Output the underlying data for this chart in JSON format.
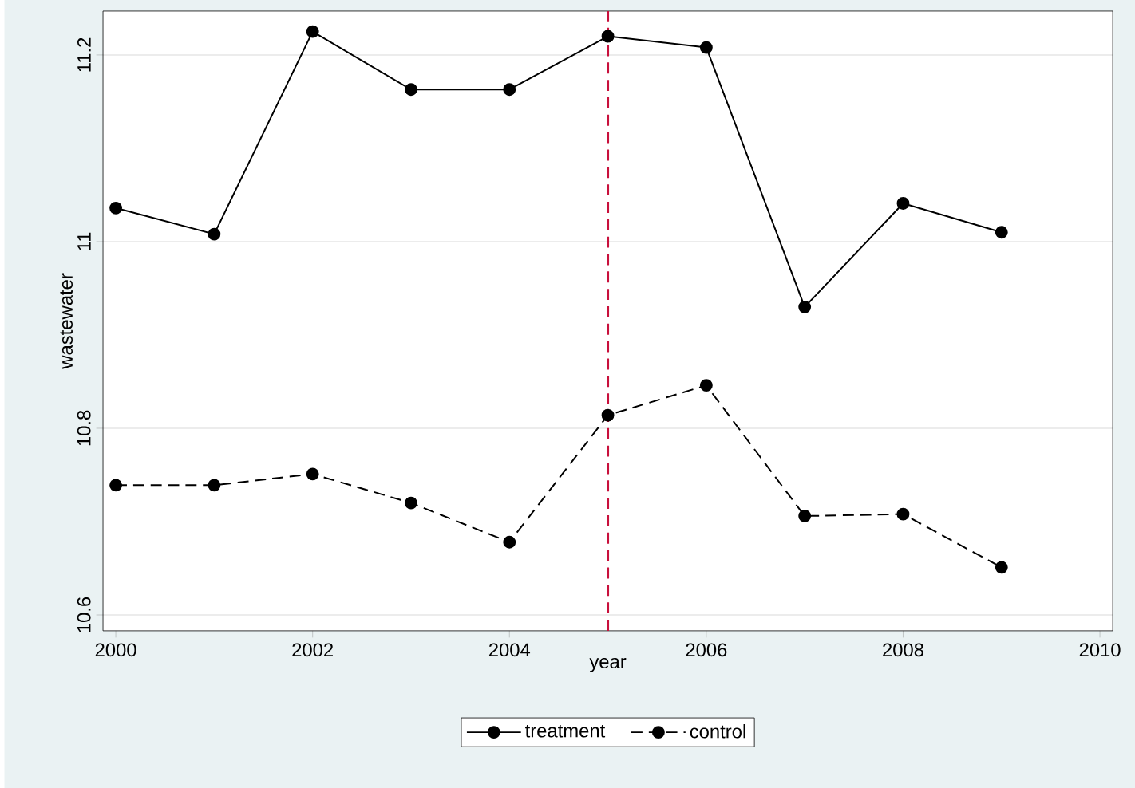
{
  "chart_data": {
    "type": "line",
    "xlabel": "year",
    "ylabel": "wastewater",
    "x": [
      2000,
      2001,
      2002,
      2003,
      2004,
      2005,
      2006,
      2007,
      2008,
      2009
    ],
    "series": [
      {
        "name": "treatment",
        "color": "#000000",
        "line_style": "solid",
        "values": [
          11.036,
          11.008,
          11.225,
          11.163,
          11.163,
          11.22,
          11.208,
          10.93,
          11.041,
          11.01
        ]
      },
      {
        "name": "control",
        "color": "#000000",
        "line_style": "dashed",
        "values": [
          10.739,
          10.739,
          10.751,
          10.72,
          10.678,
          10.814,
          10.846,
          10.706,
          10.708,
          10.651
        ]
      }
    ],
    "xlim": [
      1999.87,
      2010.13
    ],
    "ylim": [
      10.583,
      11.247
    ],
    "xticks": [
      2000,
      2002,
      2004,
      2006,
      2008,
      2010
    ],
    "yticks": [
      10.6,
      10.8,
      11,
      11.2
    ],
    "ref_lines": [
      {
        "axis": "x",
        "value": 2005,
        "color": "#c8103c",
        "line_style": "dashed"
      }
    ],
    "grid": "y",
    "legend": "bottom",
    "marker": "circle"
  }
}
